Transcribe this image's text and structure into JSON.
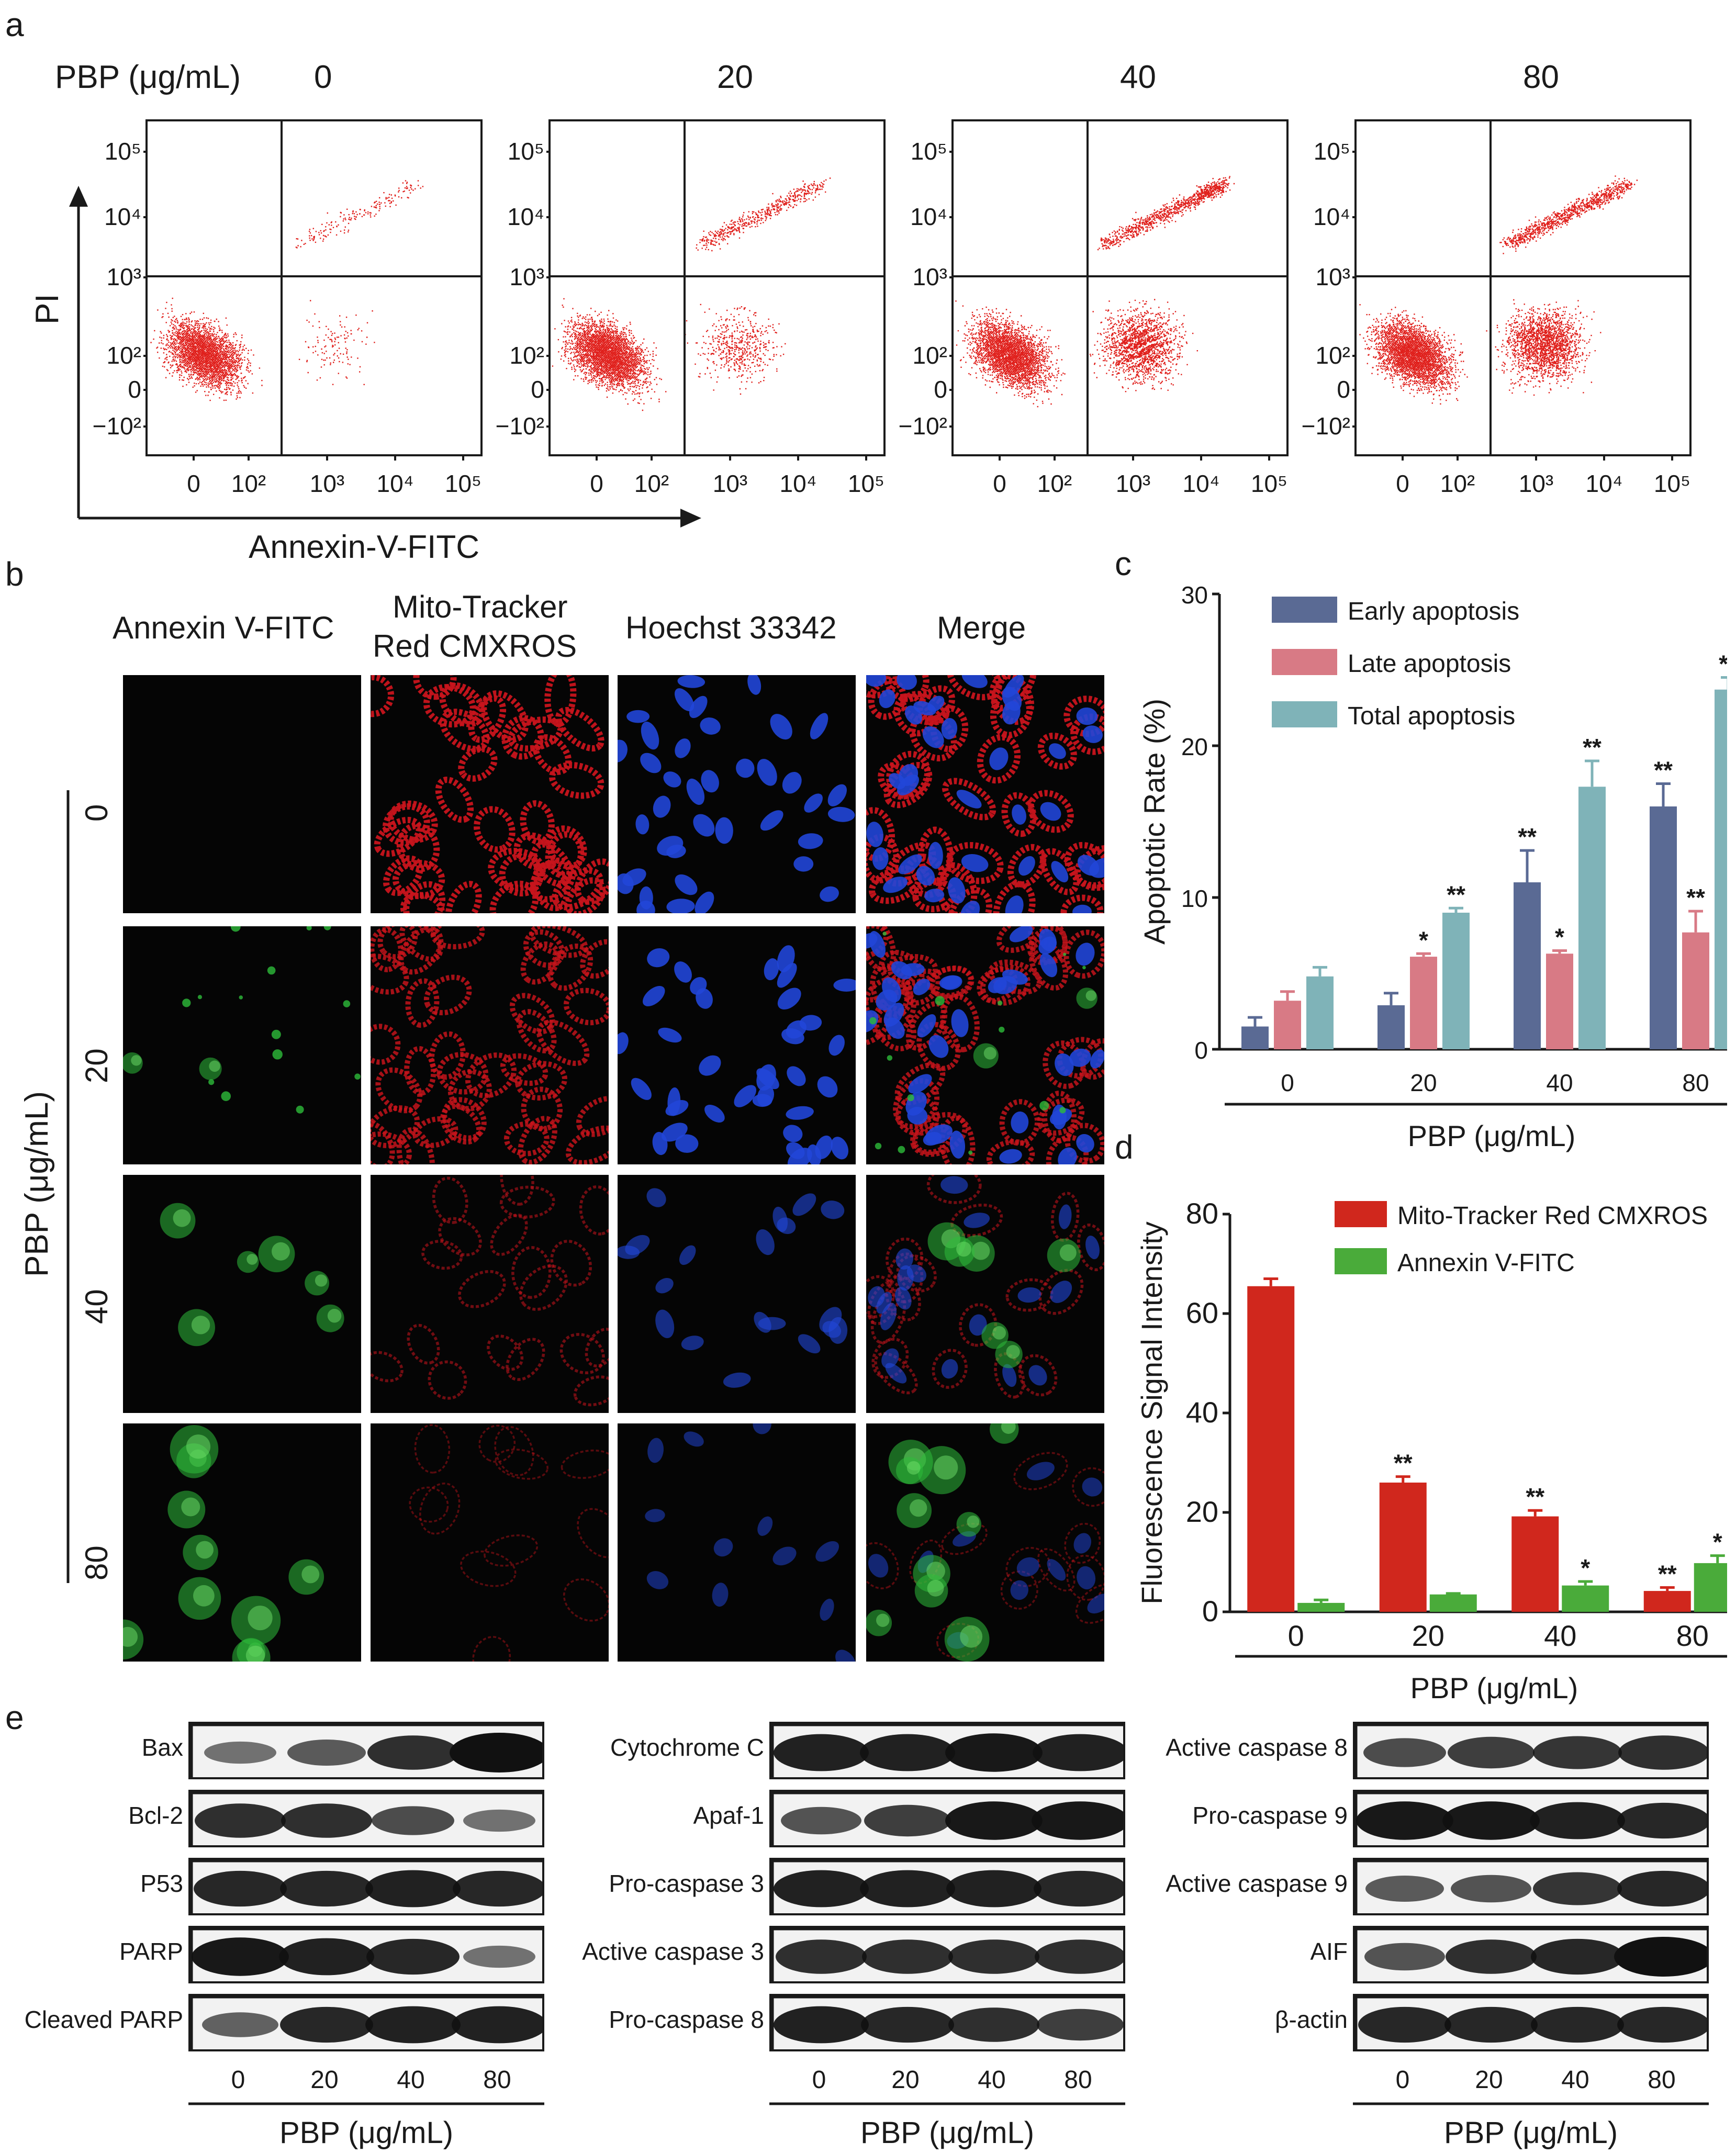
{
  "panel_letters": {
    "a": "a",
    "b": "b",
    "c": "c",
    "d": "d",
    "e": "e"
  },
  "colors": {
    "scatter_red": "#e0201c",
    "early": "#5a6a94",
    "late": "#d87a85",
    "total": "#7fb3b8",
    "mito": "#d0271d",
    "annexin": "#4aab3a",
    "green_cell": "#2dbb3a",
    "red_cell": "#c8141c",
    "blue_nuc": "#2146d8"
  },
  "panel_a": {
    "row_label": "PBP (μg/mL)",
    "doses": [
      "0",
      "20",
      "40",
      "80"
    ],
    "y_label": "PI",
    "x_label": "Annexin-V-FITC",
    "y_ticks": [
      "10⁵",
      "10⁴",
      "10³",
      "10²",
      "0",
      "−10²"
    ],
    "x_ticks": [
      "0",
      "10²",
      "10³",
      "10⁴",
      "10⁵"
    ],
    "shapes_icon": "scatter-dots"
  },
  "panel_b": {
    "columns": [
      "Annexin V-FITC",
      "Mito-Tracker Red CMXROS",
      "Hoechst 33342",
      "Merge"
    ],
    "col_mito_line1": "Mito-Tracker",
    "col_mito_line2": "Red CMXROS",
    "row_axis_label": "PBP (μg/mL)",
    "rows": [
      "0",
      "20",
      "40",
      "80"
    ],
    "green_density": [
      0,
      0.15,
      0.5,
      0.8
    ],
    "red_density": [
      1.0,
      0.8,
      0.35,
      0.15
    ],
    "blue_density": [
      1.0,
      1.0,
      0.35,
      0.15
    ]
  },
  "chart_data": [
    {
      "id": "c",
      "type": "bar",
      "title": "",
      "xlabel": "PBP (μg/mL)",
      "ylabel": "Apoptotic Rate (%)",
      "ylim": [
        0,
        30
      ],
      "yticks": [
        0,
        10,
        20,
        30
      ],
      "categories": [
        "0",
        "20",
        "40",
        "80"
      ],
      "legend_position": "top-left",
      "series": [
        {
          "name": "Early apoptosis",
          "values": [
            1.5,
            2.9,
            11.0,
            16.0
          ],
          "errors": [
            0.6,
            0.8,
            2.1,
            1.5
          ],
          "sig": [
            "",
            "",
            "**",
            "**"
          ]
        },
        {
          "name": "Late apoptosis",
          "values": [
            3.2,
            6.1,
            6.3,
            7.7
          ],
          "errors": [
            0.6,
            0.2,
            0.2,
            1.4
          ],
          "sig": [
            "",
            "*",
            "*",
            "**"
          ]
        },
        {
          "name": "Total apoptosis",
          "values": [
            4.8,
            9.0,
            17.3,
            23.7
          ],
          "errors": [
            0.6,
            0.3,
            1.7,
            0.8
          ],
          "sig": [
            "",
            "**",
            "**",
            "**"
          ]
        }
      ]
    },
    {
      "id": "d",
      "type": "bar",
      "title": "",
      "xlabel": "PBP (μg/mL)",
      "ylabel": "Fluorescence Signal Intensity",
      "ylim": [
        0,
        80
      ],
      "yticks": [
        0,
        20,
        40,
        60,
        80
      ],
      "categories": [
        "0",
        "20",
        "40",
        "80"
      ],
      "legend_position": "top-right",
      "series": [
        {
          "name": "Mito-Tracker Red CMXROS",
          "values": [
            65.5,
            26.0,
            19.2,
            4.2
          ],
          "errors": [
            1.5,
            1.2,
            1.2,
            0.7
          ],
          "sig": [
            "",
            "**",
            "**",
            "**"
          ]
        },
        {
          "name": "Annexin V-FITC",
          "values": [
            1.8,
            3.5,
            5.3,
            9.8
          ],
          "errors": [
            0.6,
            0.2,
            0.8,
            1.5
          ],
          "sig": [
            "",
            "",
            "*",
            "*"
          ]
        }
      ]
    }
  ],
  "panel_e": {
    "axis_label": "PBP (μg/mL)",
    "doses": [
      "0",
      "20",
      "40",
      "80"
    ],
    "groups": [
      {
        "labels": [
          "Bax",
          "Bcl-2",
          "P53",
          "PARP",
          "Cleaved PARP"
        ],
        "intensity": [
          [
            0.35,
            0.5,
            0.8,
            1.0
          ],
          [
            0.8,
            0.8,
            0.6,
            0.35
          ],
          [
            0.85,
            0.85,
            0.9,
            0.85
          ],
          [
            0.95,
            0.9,
            0.85,
            0.35
          ],
          [
            0.45,
            0.85,
            0.9,
            0.9
          ]
        ]
      },
      {
        "labels": [
          "Cytochrome C",
          "Apaf-1",
          "Pro-caspase 3",
          "Active caspase 3",
          "Pro-caspase 8"
        ],
        "intensity": [
          [
            0.9,
            0.9,
            0.95,
            0.9
          ],
          [
            0.55,
            0.7,
            0.95,
            0.95
          ],
          [
            0.9,
            0.9,
            0.9,
            0.85
          ],
          [
            0.8,
            0.8,
            0.8,
            0.8
          ],
          [
            0.9,
            0.85,
            0.8,
            0.7
          ]
        ]
      },
      {
        "labels": [
          "Active caspase 8",
          "Pro-caspase 9",
          "Active caspase 9",
          "AIF",
          "β-actin"
        ],
        "intensity": [
          [
            0.6,
            0.7,
            0.75,
            0.8
          ],
          [
            0.95,
            0.95,
            0.9,
            0.85
          ],
          [
            0.5,
            0.55,
            0.75,
            0.85
          ],
          [
            0.55,
            0.8,
            0.85,
            1.0
          ],
          [
            0.85,
            0.85,
            0.85,
            0.85
          ]
        ]
      }
    ]
  }
}
